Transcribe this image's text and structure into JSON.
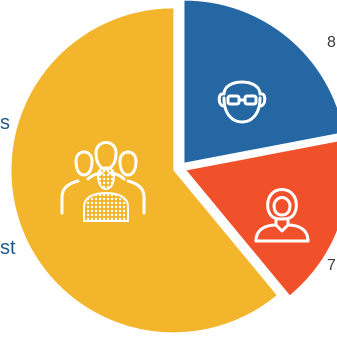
{
  "chart_data": {
    "type": "pie",
    "labels": [
      "",
      "",
      ""
    ],
    "values": [
      22,
      17,
      61
    ],
    "colors": [
      "#2467a3",
      "#f0502a",
      "#f2b52b"
    ],
    "data_labels": [
      "8",
      "7",
      ""
    ],
    "side_labels": [
      "s",
      "st"
    ],
    "icons": [
      "elderly-person-icon",
      "woman-icon",
      "group-icon"
    ]
  }
}
